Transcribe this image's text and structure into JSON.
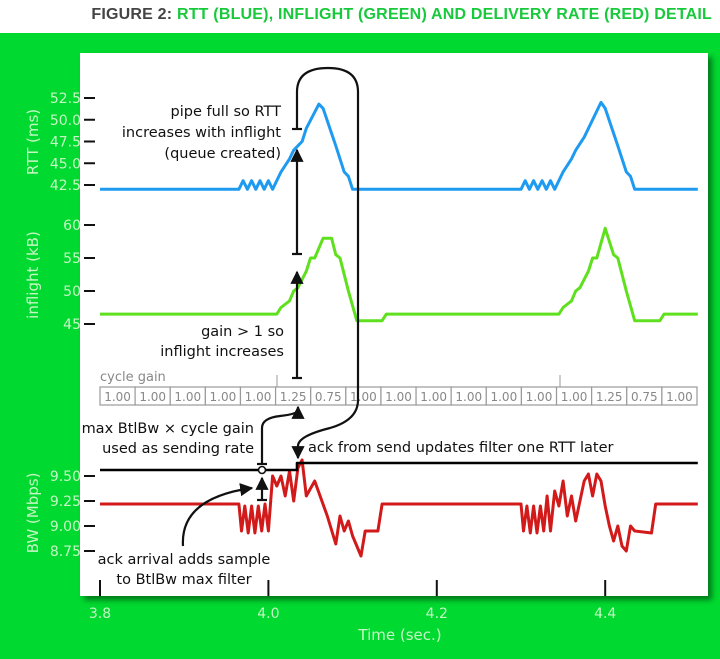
{
  "title": {
    "lead": "FIGURE 2:",
    "rest": "RTT (BLUE), INFLIGHT (GREEN) AND DELIVERY RATE (RED) DETAIL"
  },
  "colors": {
    "background": "#00d92f",
    "rtt": "#1e9bf0",
    "inflight": "#5fe01e",
    "bw": "#d21a1a",
    "filter": "#000000"
  },
  "annotations": {
    "pipe_full": [
      "pipe full so RTT",
      "increases with inflight",
      "(queue created)"
    ],
    "gain_gt_1": [
      "gain > 1 so",
      "inflight increases"
    ],
    "cycle_gain_label": "cycle gain",
    "sending_rate": [
      "max BtlBw × cycle gain",
      "used as sending rate"
    ],
    "ack_update": "ack from send updates filter one RTT later",
    "ack_arrival": [
      "ack arrival adds sample",
      "to BtlBw max filter"
    ]
  },
  "chart_data": [
    {
      "type": "line",
      "ylabel": "RTT (ms)",
      "yticks": [
        "42.5",
        "45.0",
        "47.5",
        "50.0",
        "52.5"
      ],
      "series": [
        {
          "color": "#1e9bf0",
          "points": [
            [
              3.8,
              42
            ],
            [
              3.965,
              42
            ],
            [
              3.97,
              43
            ],
            [
              3.975,
              42
            ],
            [
              3.98,
              43
            ],
            [
              3.985,
              42
            ],
            [
              3.99,
              43
            ],
            [
              3.995,
              42
            ],
            [
              4.0,
              43
            ],
            [
              4.005,
              42
            ],
            [
              4.015,
              44
            ],
            [
              4.025,
              45.5
            ],
            [
              4.03,
              46.5
            ],
            [
              4.035,
              47
            ],
            [
              4.04,
              47.5
            ],
            [
              4.045,
              49
            ],
            [
              4.06,
              51.8
            ],
            [
              4.065,
              51.3
            ],
            [
              4.08,
              47
            ],
            [
              4.09,
              44
            ],
            [
              4.095,
              43.5
            ],
            [
              4.1,
              42
            ],
            [
              4.3,
              42
            ],
            [
              4.305,
              43
            ],
            [
              4.31,
              42
            ],
            [
              4.315,
              43
            ],
            [
              4.32,
              42
            ],
            [
              4.325,
              43
            ],
            [
              4.33,
              42
            ],
            [
              4.335,
              43
            ],
            [
              4.34,
              42
            ],
            [
              4.35,
              44
            ],
            [
              4.36,
              45.5
            ],
            [
              4.365,
              46.5
            ],
            [
              4.375,
              48
            ],
            [
              4.395,
              52
            ],
            [
              4.4,
              51.3
            ],
            [
              4.415,
              47
            ],
            [
              4.425,
              44
            ],
            [
              4.43,
              43.5
            ],
            [
              4.435,
              42
            ],
            [
              4.51,
              42
            ]
          ]
        }
      ]
    },
    {
      "type": "line",
      "ylabel": "inflight (kB)",
      "yticks": [
        "45",
        "50",
        "55",
        "60"
      ],
      "series": [
        {
          "color": "#5fe01e",
          "points": [
            [
              3.8,
              46.5
            ],
            [
              4.01,
              46.5
            ],
            [
              4.015,
              47.5
            ],
            [
              4.025,
              48.5
            ],
            [
              4.03,
              50
            ],
            [
              4.035,
              50.5
            ],
            [
              4.045,
              53
            ],
            [
              4.05,
              55
            ],
            [
              4.055,
              55
            ],
            [
              4.065,
              58
            ],
            [
              4.075,
              58
            ],
            [
              4.08,
              55.5
            ],
            [
              4.085,
              55
            ],
            [
              4.095,
              50
            ],
            [
              4.105,
              45.5
            ],
            [
              4.135,
              45.5
            ],
            [
              4.14,
              46.5
            ],
            [
              4.345,
              46.5
            ],
            [
              4.35,
              47.5
            ],
            [
              4.36,
              48.5
            ],
            [
              4.365,
              50
            ],
            [
              4.37,
              50.5
            ],
            [
              4.38,
              53
            ],
            [
              4.385,
              55
            ],
            [
              4.39,
              55
            ],
            [
              4.4,
              59.5
            ],
            [
              4.41,
              55.5
            ],
            [
              4.415,
              55
            ],
            [
              4.425,
              50
            ],
            [
              4.435,
              45.5
            ],
            [
              4.465,
              45.5
            ],
            [
              4.47,
              46.5
            ],
            [
              4.51,
              46.5
            ]
          ]
        }
      ]
    },
    {
      "type": "line",
      "ylabel": "BW (Mbps)",
      "yticks": [
        "8.75",
        "9.00",
        "9.25",
        "9.50"
      ],
      "xlabel": "Time (sec.)",
      "xticks": [
        "3.8",
        "4.0",
        "4.2",
        "4.4"
      ],
      "xlim": [
        3.8,
        4.51
      ],
      "cycle_gain": [
        "1.00",
        "1.00",
        "1.00",
        "1.00",
        "1.00",
        "1.25",
        "0.75",
        "1.00",
        "1.00",
        "1.00",
        "1.00",
        "1.00",
        "1.00",
        "1.00",
        "1.25",
        "0.75",
        "1.00",
        "1.00"
      ],
      "series": [
        {
          "color": "#d21a1a",
          "points": [
            [
              3.8,
              9.22
            ],
            [
              3.965,
              9.22
            ],
            [
              3.968,
              8.95
            ],
            [
              3.972,
              9.2
            ],
            [
              3.976,
              8.93
            ],
            [
              3.98,
              9.2
            ],
            [
              3.984,
              8.93
            ],
            [
              3.988,
              9.2
            ],
            [
              3.992,
              8.95
            ],
            [
              3.996,
              9.22
            ],
            [
              4.0,
              8.95
            ],
            [
              4.005,
              9.5
            ],
            [
              4.01,
              9.4
            ],
            [
              4.015,
              9.5
            ],
            [
              4.02,
              9.3
            ],
            [
              4.025,
              9.55
            ],
            [
              4.03,
              9.25
            ],
            [
              4.035,
              9.58
            ],
            [
              4.04,
              9.66
            ],
            [
              4.045,
              9.3
            ],
            [
              4.055,
              9.45
            ],
            [
              4.07,
              9.1
            ],
            [
              4.08,
              8.82
            ],
            [
              4.085,
              9.1
            ],
            [
              4.09,
              8.95
            ],
            [
              4.095,
              9.05
            ],
            [
              4.1,
              8.9
            ],
            [
              4.11,
              8.7
            ],
            [
              4.115,
              8.95
            ],
            [
              4.13,
              8.95
            ],
            [
              4.135,
              9.22
            ],
            [
              4.3,
              9.22
            ],
            [
              4.303,
              8.95
            ],
            [
              4.307,
              9.2
            ],
            [
              4.311,
              8.93
            ],
            [
              4.315,
              9.2
            ],
            [
              4.319,
              8.93
            ],
            [
              4.323,
              9.2
            ],
            [
              4.327,
              8.95
            ],
            [
              4.331,
              9.3
            ],
            [
              4.335,
              8.95
            ],
            [
              4.34,
              9.35
            ],
            [
              4.345,
              9.2
            ],
            [
              4.35,
              9.45
            ],
            [
              4.355,
              9.1
            ],
            [
              4.36,
              9.3
            ],
            [
              4.365,
              9.05
            ],
            [
              4.375,
              9.45
            ],
            [
              4.38,
              9.52
            ],
            [
              4.385,
              9.3
            ],
            [
              4.39,
              9.52
            ],
            [
              4.395,
              9.45
            ],
            [
              4.4,
              9.2
            ],
            [
              4.405,
              9.0
            ],
            [
              4.41,
              8.85
            ],
            [
              4.415,
              9.0
            ],
            [
              4.42,
              8.8
            ],
            [
              4.425,
              8.75
            ],
            [
              4.43,
              9.0
            ],
            [
              4.435,
              8.95
            ],
            [
              4.455,
              8.93
            ],
            [
              4.46,
              9.22
            ],
            [
              4.51,
              9.22
            ]
          ]
        },
        {
          "color": "#000000",
          "points": [
            [
              3.8,
              9.56
            ],
            [
              4.034,
              9.56
            ],
            [
              4.034,
              9.63
            ],
            [
              4.51,
              9.63
            ]
          ]
        }
      ]
    }
  ]
}
